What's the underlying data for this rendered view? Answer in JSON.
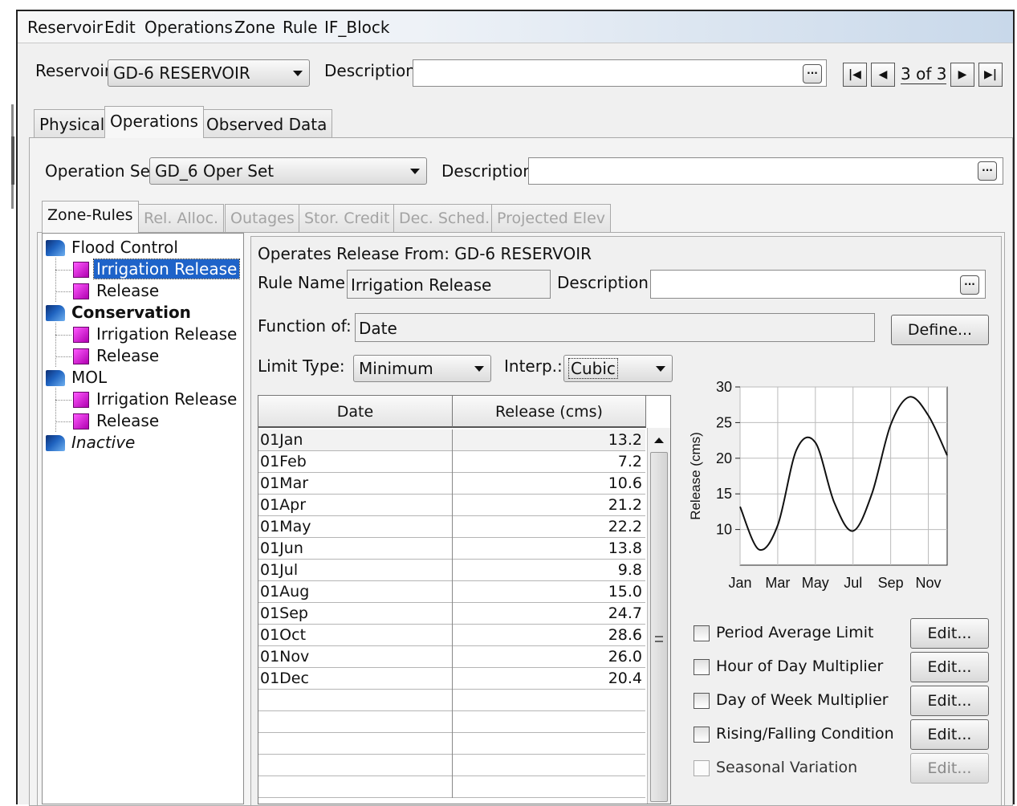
{
  "menu": [
    "Reservoir",
    "Edit",
    "Operations",
    "Zone",
    "Rule",
    "IF_Block"
  ],
  "reservoir": {
    "label": "Reservoir",
    "value": "GD-6 RESERVOIR",
    "description_label": "Description",
    "description_value": "",
    "nav_count": "3 of 3"
  },
  "tabs": [
    "Physical",
    "Operations",
    "Observed Data"
  ],
  "operation_set": {
    "label": "Operation Set",
    "value": "GD_6 Oper Set",
    "description_label": "Description",
    "description_value": ""
  },
  "subtabs": [
    "Zone-Rules",
    "Rel. Alloc.",
    "Outages",
    "Stor. Credit",
    "Dec. Sched.",
    "Projected Elev"
  ],
  "tree": [
    {
      "label": "Flood Control",
      "type": "zone"
    },
    {
      "label": "Irrigation Release",
      "type": "rule",
      "selected": true
    },
    {
      "label": "Release",
      "type": "rule"
    },
    {
      "label": "Conservation",
      "type": "zone",
      "bold": true
    },
    {
      "label": "Irrigation Release",
      "type": "rule"
    },
    {
      "label": "Release",
      "type": "rule"
    },
    {
      "label": "MOL",
      "type": "zone"
    },
    {
      "label": "Irrigation Release",
      "type": "rule"
    },
    {
      "label": "Release",
      "type": "rule"
    },
    {
      "label": "Inactive",
      "type": "zone",
      "italic": true
    }
  ],
  "rule": {
    "operates_from": "Operates Release From: GD-6 RESERVOIR",
    "name_label": "Rule Name:",
    "name_value": "Irrigation Release",
    "description_label": "Description:",
    "description_value": "",
    "function_label": "Function of:",
    "function_value": "Date",
    "define_button": "Define...",
    "limit_type_label": "Limit Type:",
    "limit_type_value": "Minimum",
    "interp_label": "Interp.:",
    "interp_value": "Cubic"
  },
  "table": {
    "headers": [
      "Date",
      "Release (cms)"
    ],
    "rows": [
      {
        "date": "01Jan",
        "value": "13.2"
      },
      {
        "date": "01Feb",
        "value": "7.2"
      },
      {
        "date": "01Mar",
        "value": "10.6"
      },
      {
        "date": "01Apr",
        "value": "21.2"
      },
      {
        "date": "01May",
        "value": "22.2"
      },
      {
        "date": "01Jun",
        "value": "13.8"
      },
      {
        "date": "01Jul",
        "value": "9.8"
      },
      {
        "date": "01Aug",
        "value": "15.0"
      },
      {
        "date": "01Sep",
        "value": "24.7"
      },
      {
        "date": "01Oct",
        "value": "28.6"
      },
      {
        "date": "01Nov",
        "value": "26.0"
      },
      {
        "date": "01Dec",
        "value": "20.4"
      }
    ]
  },
  "chart_data": {
    "type": "line",
    "ylabel": "Release (cms)",
    "xlabel": "",
    "yticks": [
      10,
      15,
      20,
      25,
      30
    ],
    "ylim": [
      5,
      30
    ],
    "xticks": [
      "Jan",
      "Mar",
      "May",
      "Jul",
      "Sep",
      "Nov"
    ],
    "x": [
      "01Jan",
      "01Feb",
      "01Mar",
      "01Apr",
      "01May",
      "01Jun",
      "01Jul",
      "01Aug",
      "01Sep",
      "01Oct",
      "01Nov",
      "01Dec"
    ],
    "series": [
      {
        "values": [
          13.2,
          7.2,
          10.6,
          21.2,
          22.2,
          13.8,
          9.8,
          15.0,
          24.7,
          28.6,
          26.0,
          20.4
        ]
      }
    ],
    "grid": true,
    "line_color": "#111111"
  },
  "options": [
    {
      "label": "Period Average Limit",
      "button": "Edit...",
      "enabled": true
    },
    {
      "label": "Hour of Day Multiplier",
      "button": "Edit...",
      "enabled": true
    },
    {
      "label": "Day of Week Multiplier",
      "button": "Edit...",
      "enabled": true
    },
    {
      "label": "Rising/Falling Condition",
      "button": "Edit...",
      "enabled": true
    },
    {
      "label": "Seasonal Variation",
      "button": "Edit...",
      "enabled": false
    }
  ],
  "colors": {
    "selection": "#1e63c9",
    "rule_icon": "#d000d0"
  }
}
